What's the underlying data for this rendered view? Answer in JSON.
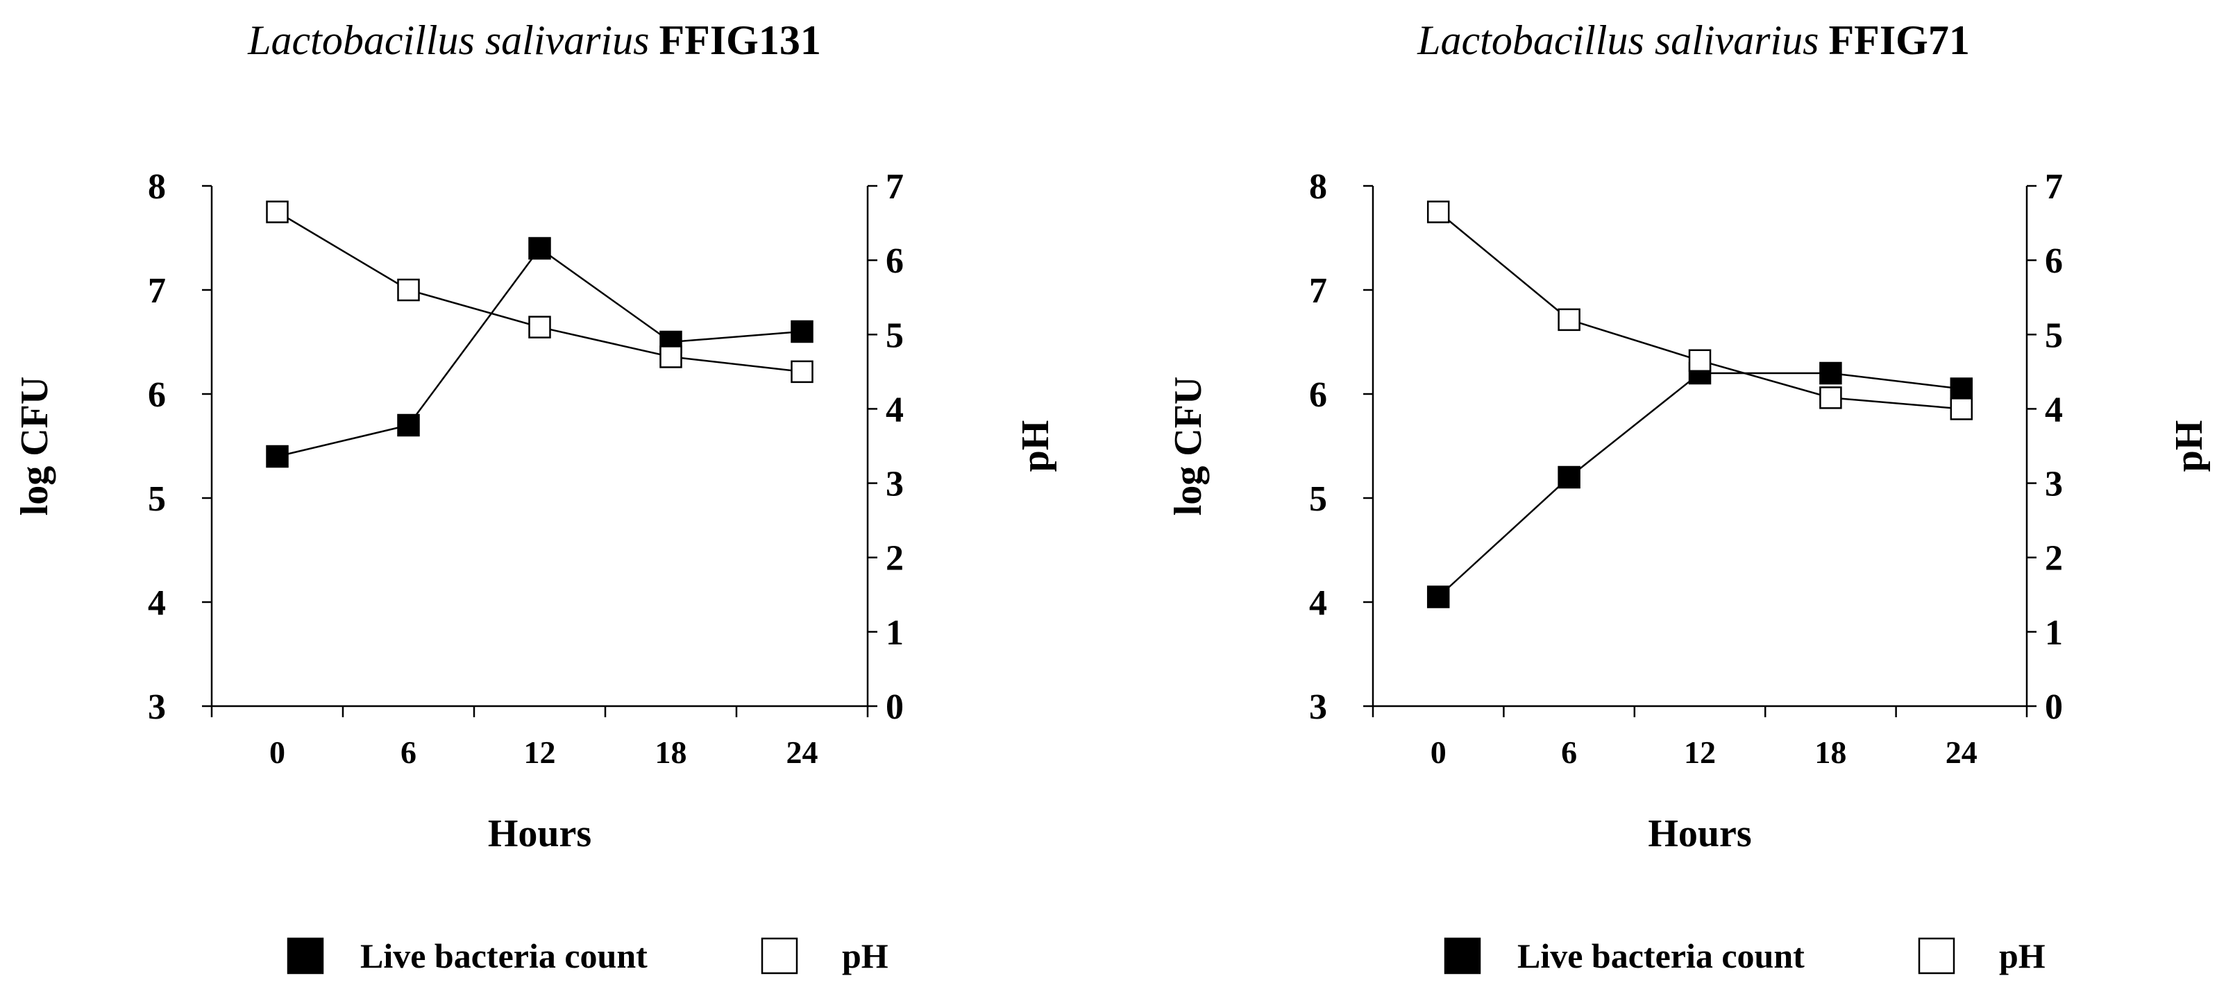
{
  "chart_data": [
    {
      "type": "line",
      "title_species": "Lactobacillus salivarius",
      "title_strain": "FFIG131",
      "xlabel": "Hours",
      "ylabel": "log CFU",
      "y2label": "pH",
      "ylim": [
        3,
        8
      ],
      "y2lim": [
        0,
        7
      ],
      "yticks": [
        "3",
        "4",
        "5",
        "6",
        "7",
        "8"
      ],
      "y2ticks": [
        "0",
        "1",
        "2",
        "3",
        "4",
        "5",
        "6",
        "7"
      ],
      "categories": [
        "0",
        "6",
        "12",
        "18",
        "24"
      ],
      "series": [
        {
          "name": "Live bacteria count",
          "axis": "left",
          "marker": "filled-square",
          "values": [
            5.4,
            5.7,
            7.4,
            6.5,
            6.6
          ]
        },
        {
          "name": "pH",
          "axis": "right",
          "marker": "open-square",
          "values": [
            6.65,
            5.6,
            5.1,
            4.7,
            4.5
          ]
        }
      ],
      "legend": [
        "Live bacteria count",
        "pH"
      ]
    },
    {
      "type": "line",
      "title_species": "Lactobacillus salivarius",
      "title_strain": "FFIG71",
      "xlabel": "Hours",
      "ylabel": "log CFU",
      "y2label": "pH",
      "ylim": [
        3,
        8
      ],
      "y2lim": [
        0,
        7
      ],
      "yticks": [
        "3",
        "4",
        "5",
        "6",
        "7",
        "8"
      ],
      "y2ticks": [
        "0",
        "1",
        "2",
        "3",
        "4",
        "5",
        "6",
        "7"
      ],
      "categories": [
        "0",
        "6",
        "12",
        "18",
        "24"
      ],
      "series": [
        {
          "name": "Live bacteria count",
          "axis": "left",
          "marker": "filled-square",
          "values": [
            4.05,
            5.2,
            6.2,
            6.2,
            6.05
          ]
        },
        {
          "name": "pH",
          "axis": "right",
          "marker": "open-square",
          "values": [
            6.65,
            5.2,
            4.65,
            4.15,
            4.0
          ]
        }
      ],
      "legend": [
        "Live bacteria count",
        "pH"
      ]
    }
  ],
  "colors": {
    "line": "#000000",
    "filled_marker": "#000000",
    "open_marker_fill": "#ffffff"
  }
}
